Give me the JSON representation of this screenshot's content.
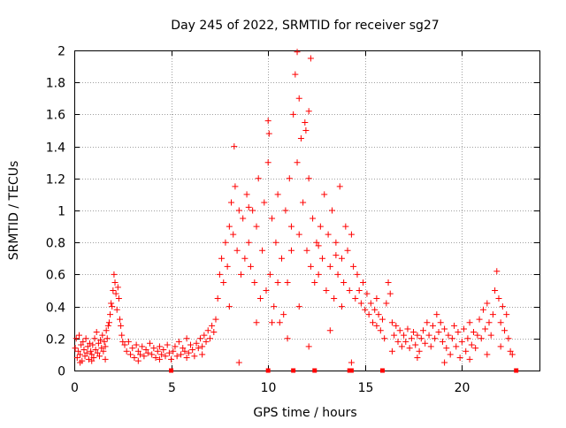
{
  "chart_data": {
    "type": "scatter",
    "title": "Day 245 of 2022, SRMTID for receiver sg27",
    "xlabel": "GPS time / hours",
    "ylabel": "SRMTID / TECUs",
    "xlim": [
      0,
      24
    ],
    "ylim": [
      0,
      2
    ],
    "xticks": [
      0,
      5,
      10,
      15,
      20
    ],
    "yticks": [
      0,
      0.2,
      0.4,
      0.6,
      0.8,
      1,
      1.2,
      1.4,
      1.6,
      1.8,
      2
    ],
    "grid": true,
    "marker": "+",
    "series": [
      {
        "name": "sg27",
        "color": "#ff0000",
        "points": [
          [
            0.05,
            0.14
          ],
          [
            0.1,
            0.2
          ],
          [
            0.15,
            0.08
          ],
          [
            0.2,
            0.12
          ],
          [
            0.25,
            0.22
          ],
          [
            0.3,
            0.1
          ],
          [
            0.35,
            0.16
          ],
          [
            0.4,
            0.06
          ],
          [
            0.45,
            0.18
          ],
          [
            0.5,
            0.13
          ],
          [
            0.55,
            0.09
          ],
          [
            0.6,
            0.2
          ],
          [
            0.65,
            0.11
          ],
          [
            0.7,
            0.15
          ],
          [
            0.75,
            0.07
          ],
          [
            0.8,
            0.17
          ],
          [
            0.85,
            0.12
          ],
          [
            0.9,
            0.1
          ],
          [
            0.95,
            0.16
          ],
          [
            1.0,
            0.08
          ],
          [
            1.05,
            0.2
          ],
          [
            1.1,
            0.13
          ],
          [
            1.15,
            0.24
          ],
          [
            1.2,
            0.11
          ],
          [
            1.25,
            0.17
          ],
          [
            1.3,
            0.09
          ],
          [
            1.35,
            0.19
          ],
          [
            1.4,
            0.14
          ],
          [
            1.45,
            0.22
          ],
          [
            1.5,
            0.12
          ],
          [
            1.55,
            0.18
          ],
          [
            1.6,
            0.15
          ],
          [
            1.65,
            0.25
          ],
          [
            1.7,
            0.2
          ],
          [
            1.75,
            0.28
          ],
          [
            1.8,
            0.3
          ],
          [
            1.85,
            0.35
          ],
          [
            1.9,
            0.42
          ],
          [
            1.95,
            0.4
          ],
          [
            2.0,
            0.5
          ],
          [
            2.05,
            0.6
          ],
          [
            2.1,
            0.55
          ],
          [
            2.15,
            0.48
          ],
          [
            2.2,
            0.38
          ],
          [
            2.25,
            0.52
          ],
          [
            2.3,
            0.45
          ],
          [
            2.35,
            0.32
          ],
          [
            2.4,
            0.28
          ],
          [
            2.45,
            0.22
          ],
          [
            2.5,
            0.18
          ],
          [
            2.6,
            0.16
          ],
          [
            2.7,
            0.12
          ],
          [
            2.8,
            0.18
          ],
          [
            2.9,
            0.1
          ],
          [
            3.0,
            0.14
          ],
          [
            3.1,
            0.08
          ],
          [
            3.2,
            0.16
          ],
          [
            3.3,
            0.12
          ],
          [
            3.4,
            0.1
          ],
          [
            3.5,
            0.15
          ],
          [
            3.6,
            0.09
          ],
          [
            3.7,
            0.13
          ],
          [
            3.8,
            0.11
          ],
          [
            3.9,
            0.17
          ],
          [
            4.0,
            0.1
          ],
          [
            4.1,
            0.14
          ],
          [
            4.2,
            0.08
          ],
          [
            4.3,
            0.12
          ],
          [
            4.4,
            0.15
          ],
          [
            4.5,
            0.1
          ],
          [
            4.6,
            0.13
          ],
          [
            4.7,
            0.09
          ],
          [
            4.8,
            0.16
          ],
          [
            4.9,
            0.11
          ],
          [
            5.0,
            0.07
          ],
          [
            5.1,
            0.12
          ],
          [
            5.2,
            0.15
          ],
          [
            5.3,
            0.09
          ],
          [
            5.4,
            0.18
          ],
          [
            5.5,
            0.1
          ],
          [
            5.6,
            0.14
          ],
          [
            5.7,
            0.12
          ],
          [
            5.8,
            0.2
          ],
          [
            5.9,
            0.11
          ],
          [
            6.0,
            0.16
          ],
          [
            6.1,
            0.13
          ],
          [
            6.2,
            0.09
          ],
          [
            6.3,
            0.17
          ],
          [
            6.4,
            0.14
          ],
          [
            6.5,
            0.2
          ],
          [
            6.6,
            0.15
          ],
          [
            6.7,
            0.22
          ],
          [
            6.8,
            0.18
          ],
          [
            6.9,
            0.25
          ],
          [
            7.0,
            0.2
          ],
          [
            7.1,
            0.28
          ],
          [
            7.2,
            0.24
          ],
          [
            7.3,
            0.32
          ],
          [
            7.4,
            0.45
          ],
          [
            7.5,
            0.6
          ],
          [
            7.6,
            0.7
          ],
          [
            7.7,
            0.55
          ],
          [
            7.8,
            0.8
          ],
          [
            7.9,
            0.65
          ],
          [
            8.0,
            0.9
          ],
          [
            8.1,
            1.05
          ],
          [
            8.2,
            0.85
          ],
          [
            8.3,
            1.15
          ],
          [
            8.4,
            0.75
          ],
          [
            8.5,
            1.0
          ],
          [
            8.6,
            0.6
          ],
          [
            8.7,
            0.95
          ],
          [
            8.8,
            0.7
          ],
          [
            8.9,
            1.1
          ],
          [
            9.0,
            0.8
          ],
          [
            9.1,
            0.65
          ],
          [
            9.2,
            1.0
          ],
          [
            9.3,
            0.55
          ],
          [
            9.4,
            0.9
          ],
          [
            9.5,
            1.2
          ],
          [
            9.6,
            0.45
          ],
          [
            9.7,
            0.75
          ],
          [
            9.8,
            1.05
          ],
          [
            9.9,
            0.5
          ],
          [
            10.0,
            1.3
          ],
          [
            10.1,
            0.6
          ],
          [
            10.2,
            0.95
          ],
          [
            10.3,
            0.4
          ],
          [
            10.4,
            0.8
          ],
          [
            10.5,
            1.1
          ],
          [
            10.6,
            0.3
          ],
          [
            10.7,
            0.7
          ],
          [
            10.8,
            0.35
          ],
          [
            10.9,
            1.0
          ],
          [
            11.0,
            0.55
          ],
          [
            11.1,
            1.2
          ],
          [
            11.2,
            0.9
          ],
          [
            11.3,
            1.6
          ],
          [
            11.4,
            1.85
          ],
          [
            11.5,
            1.3
          ],
          [
            11.6,
            0.85
          ],
          [
            11.7,
            1.45
          ],
          [
            11.8,
            1.05
          ],
          [
            11.9,
            1.55
          ],
          [
            12.0,
            0.75
          ],
          [
            12.1,
            1.2
          ],
          [
            12.2,
            0.65
          ],
          [
            12.3,
            0.95
          ],
          [
            12.4,
            0.55
          ],
          [
            12.5,
            0.8
          ],
          [
            12.6,
            0.6
          ],
          [
            12.7,
            0.9
          ],
          [
            12.8,
            0.7
          ],
          [
            12.9,
            1.1
          ],
          [
            13.0,
            0.5
          ],
          [
            13.1,
            0.85
          ],
          [
            13.2,
            0.65
          ],
          [
            13.3,
            1.0
          ],
          [
            13.4,
            0.45
          ],
          [
            13.5,
            0.8
          ],
          [
            13.6,
            0.6
          ],
          [
            13.7,
            1.15
          ],
          [
            13.8,
            0.7
          ],
          [
            13.9,
            0.55
          ],
          [
            14.0,
            0.9
          ],
          [
            14.1,
            0.75
          ],
          [
            14.2,
            0.5
          ],
          [
            14.3,
            0.85
          ],
          [
            14.4,
            0.65
          ],
          [
            14.5,
            0.45
          ],
          [
            14.6,
            0.6
          ],
          [
            14.7,
            0.5
          ],
          [
            14.8,
            0.42
          ],
          [
            14.9,
            0.55
          ],
          [
            15.0,
            0.38
          ],
          [
            15.1,
            0.48
          ],
          [
            15.2,
            0.35
          ],
          [
            15.3,
            0.42
          ],
          [
            15.4,
            0.3
          ],
          [
            15.5,
            0.38
          ],
          [
            15.6,
            0.28
          ],
          [
            15.7,
            0.35
          ],
          [
            15.8,
            0.25
          ],
          [
            15.9,
            0.32
          ],
          [
            16.0,
            0.2
          ],
          [
            16.1,
            0.42
          ],
          [
            16.2,
            0.55
          ],
          [
            16.3,
            0.48
          ],
          [
            16.4,
            0.3
          ],
          [
            16.5,
            0.22
          ],
          [
            16.6,
            0.28
          ],
          [
            16.7,
            0.18
          ],
          [
            16.8,
            0.25
          ],
          [
            16.9,
            0.15
          ],
          [
            17.0,
            0.22
          ],
          [
            17.1,
            0.18
          ],
          [
            17.2,
            0.26
          ],
          [
            17.3,
            0.14
          ],
          [
            17.4,
            0.2
          ],
          [
            17.5,
            0.24
          ],
          [
            17.6,
            0.16
          ],
          [
            17.7,
            0.22
          ],
          [
            17.8,
            0.12
          ],
          [
            17.9,
            0.2
          ],
          [
            18.0,
            0.25
          ],
          [
            18.1,
            0.17
          ],
          [
            18.2,
            0.3
          ],
          [
            18.3,
            0.22
          ],
          [
            18.4,
            0.15
          ],
          [
            18.5,
            0.28
          ],
          [
            18.6,
            0.2
          ],
          [
            18.7,
            0.35
          ],
          [
            18.8,
            0.24
          ],
          [
            18.9,
            0.3
          ],
          [
            19.0,
            0.18
          ],
          [
            19.1,
            0.26
          ],
          [
            19.2,
            0.14
          ],
          [
            19.3,
            0.22
          ],
          [
            19.4,
            0.1
          ],
          [
            19.5,
            0.2
          ],
          [
            19.6,
            0.28
          ],
          [
            19.7,
            0.15
          ],
          [
            19.8,
            0.24
          ],
          [
            19.9,
            0.08
          ],
          [
            20.0,
            0.18
          ],
          [
            20.1,
            0.26
          ],
          [
            20.2,
            0.12
          ],
          [
            20.3,
            0.2
          ],
          [
            20.4,
            0.3
          ],
          [
            20.5,
            0.16
          ],
          [
            20.6,
            0.24
          ],
          [
            20.7,
            0.14
          ],
          [
            20.8,
            0.22
          ],
          [
            20.9,
            0.32
          ],
          [
            21.0,
            0.2
          ],
          [
            21.1,
            0.38
          ],
          [
            21.2,
            0.26
          ],
          [
            21.3,
            0.42
          ],
          [
            21.4,
            0.3
          ],
          [
            21.5,
            0.22
          ],
          [
            21.6,
            0.35
          ],
          [
            21.7,
            0.5
          ],
          [
            21.8,
            0.62
          ],
          [
            21.9,
            0.45
          ],
          [
            22.0,
            0.3
          ],
          [
            22.1,
            0.4
          ],
          [
            22.2,
            0.25
          ],
          [
            22.3,
            0.35
          ],
          [
            22.4,
            0.2
          ],
          [
            22.5,
            0.12
          ],
          [
            0.3,
            0.05
          ],
          [
            0.9,
            0.06
          ],
          [
            1.6,
            0.07
          ],
          [
            3.3,
            0.06
          ],
          [
            4.4,
            0.07
          ],
          [
            5.8,
            0.08
          ],
          [
            6.6,
            0.1
          ],
          [
            8.5,
            0.05
          ],
          [
            9.4,
            0.3
          ],
          [
            10.2,
            0.3
          ],
          [
            11.0,
            0.2
          ],
          [
            11.6,
            0.4
          ],
          [
            12.1,
            0.15
          ],
          [
            13.2,
            0.25
          ],
          [
            13.8,
            0.4
          ],
          [
            14.3,
            0.05
          ],
          [
            15.6,
            0.45
          ],
          [
            16.4,
            0.12
          ],
          [
            17.7,
            0.08
          ],
          [
            19.1,
            0.05
          ],
          [
            20.4,
            0.07
          ],
          [
            21.3,
            0.1
          ],
          [
            22.0,
            0.15
          ],
          [
            22.6,
            0.1
          ],
          [
            8.0,
            0.4
          ],
          [
            9.0,
            1.02
          ],
          [
            10.5,
            0.55
          ],
          [
            11.2,
            0.75
          ],
          [
            12.6,
            0.78
          ],
          [
            13.5,
            0.72
          ],
          [
            11.5,
            1.99
          ],
          [
            12.2,
            1.95
          ],
          [
            10.0,
            1.56
          ],
          [
            10.05,
            1.48
          ],
          [
            8.25,
            1.4
          ],
          [
            11.6,
            1.7
          ],
          [
            12.1,
            1.62
          ],
          [
            11.95,
            1.5
          ]
        ]
      }
    ],
    "x_axis_markers": [
      5.0,
      10.0,
      11.3,
      12.4,
      14.2,
      14.3,
      15.9,
      22.8
    ]
  }
}
